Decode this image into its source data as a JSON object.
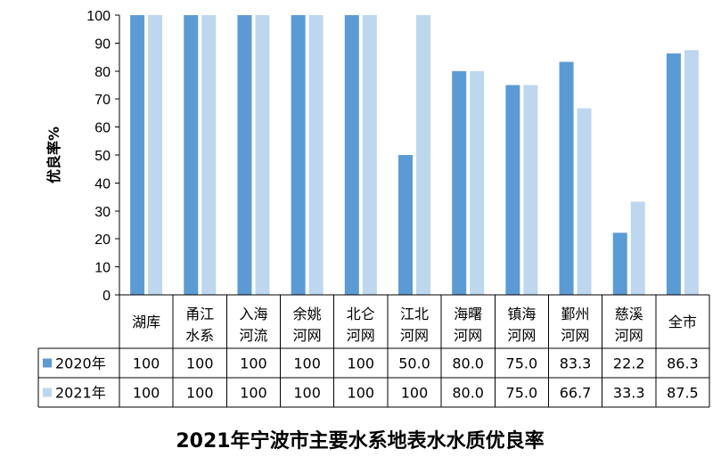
{
  "chart_data": {
    "type": "bar",
    "title": "2021年宁波市主要水系地表水水质优良率",
    "ylabel": "优良率%",
    "xlabel": "",
    "ylim": [
      0,
      100
    ],
    "yticks": [
      "0",
      "10",
      "20",
      "30",
      "40",
      "50",
      "60",
      "70",
      "80",
      "90",
      "100"
    ],
    "categories": [
      [
        "湖库"
      ],
      [
        "甬江",
        "水系"
      ],
      [
        "入海",
        "河流"
      ],
      [
        "余姚",
        "河网"
      ],
      [
        "北仑",
        "河网"
      ],
      [
        "江北",
        "河网"
      ],
      [
        "海曙",
        "河网"
      ],
      [
        "镇海",
        "河网"
      ],
      [
        "鄞州",
        "河网"
      ],
      [
        "慈溪",
        "河网"
      ],
      [
        "全市"
      ]
    ],
    "series": [
      {
        "name": "2020年",
        "color": "#5b9bd5",
        "values": [
          100,
          100,
          100,
          100,
          100,
          50.0,
          80.0,
          75.0,
          83.3,
          22.2,
          86.3
        ],
        "labels": [
          "100",
          "100",
          "100",
          "100",
          "100",
          "50.0",
          "80.0",
          "75.0",
          "83.3",
          "22.2",
          "86.3"
        ]
      },
      {
        "name": "2021年",
        "color": "#bdd7ee",
        "values": [
          100,
          100,
          100,
          100,
          100,
          100,
          80.0,
          75.0,
          66.7,
          33.3,
          87.5
        ],
        "labels": [
          "100",
          "100",
          "100",
          "100",
          "100",
          "100",
          "80.0",
          "75.0",
          "66.7",
          "33.3",
          "87.5"
        ]
      }
    ],
    "grid": false,
    "legend": "data-table"
  }
}
